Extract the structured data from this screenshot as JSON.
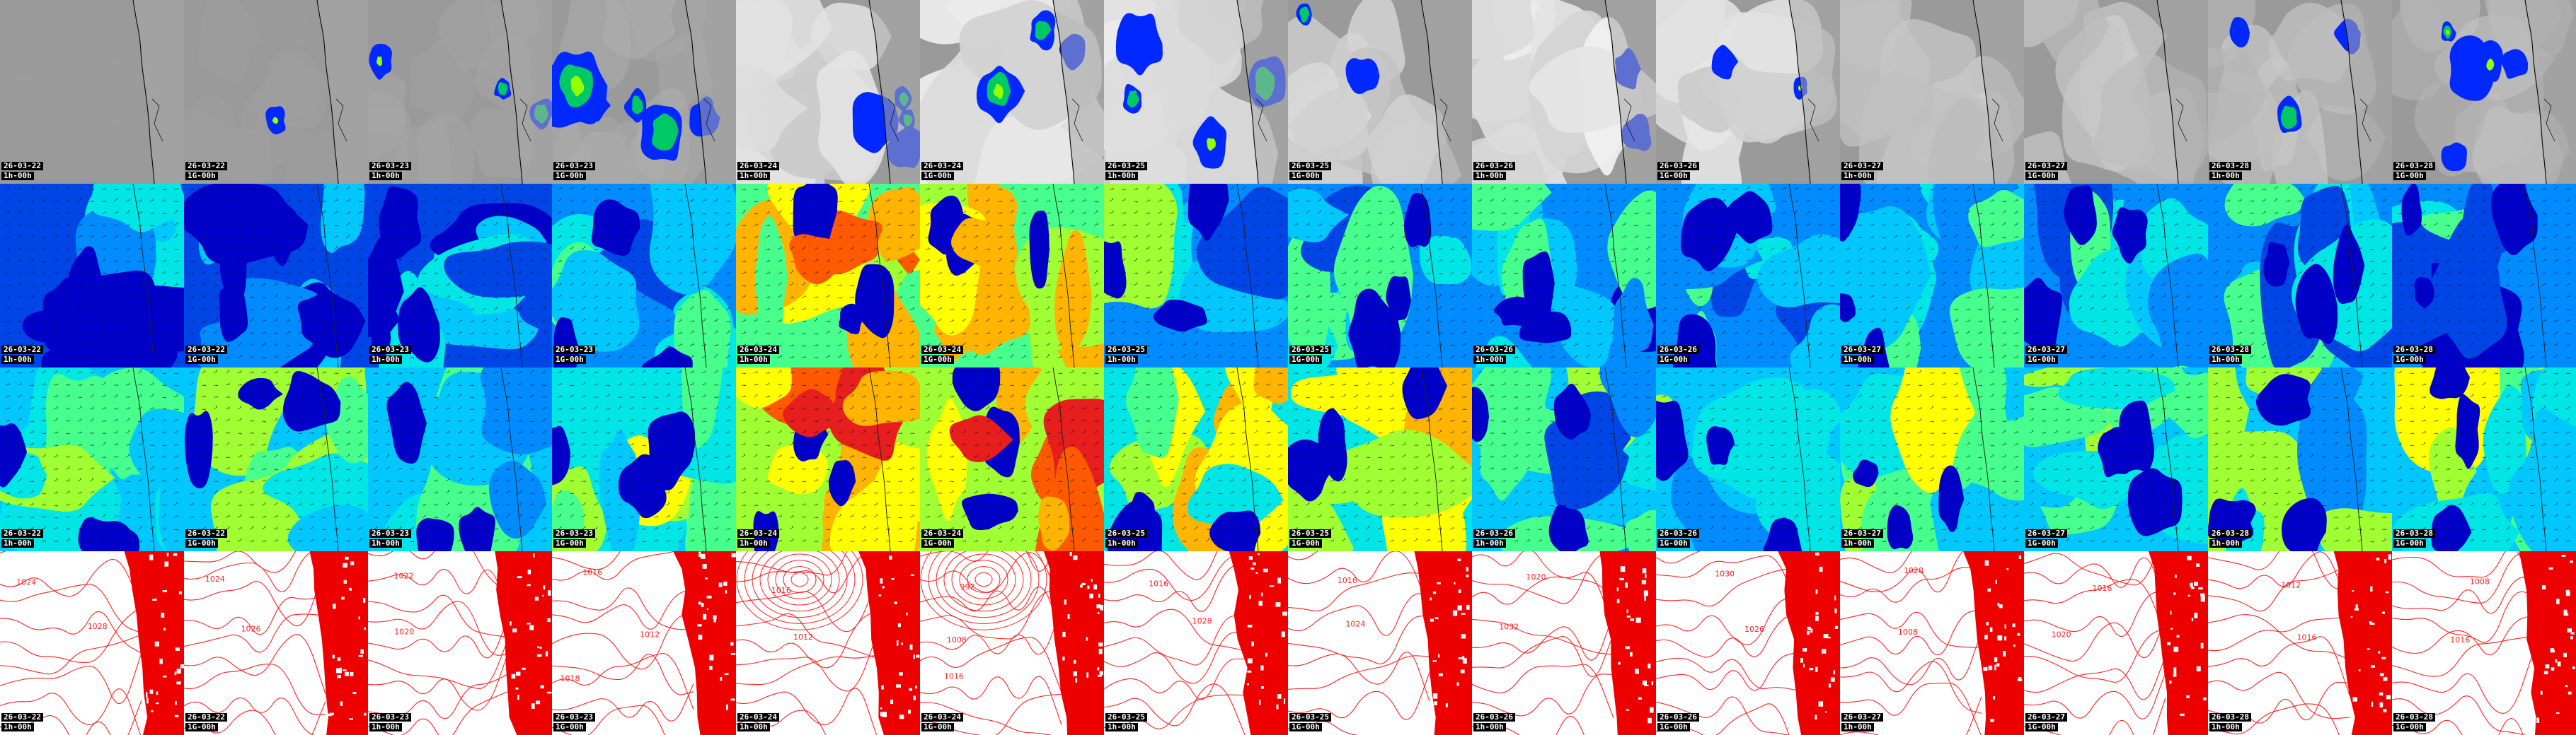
{
  "grid": {
    "columns": [
      {
        "date": "26-03-22",
        "hour": "1h-00h"
      },
      {
        "date": "26-03-22",
        "hour": "1G-00h"
      },
      {
        "date": "26-03-23",
        "hour": "1h-00h"
      },
      {
        "date": "26-03-23",
        "hour": "1G-00h"
      },
      {
        "date": "26-03-24",
        "hour": "1h-00h"
      },
      {
        "date": "26-03-24",
        "hour": "1G-00h"
      },
      {
        "date": "26-03-25",
        "hour": "1h-00h"
      },
      {
        "date": "26-03-25",
        "hour": "1G-00h"
      },
      {
        "date": "26-03-26",
        "hour": "1h-00h"
      },
      {
        "date": "26-03-26",
        "hour": "1G-00h"
      },
      {
        "date": "26-03-27",
        "hour": "1h-00h"
      },
      {
        "date": "26-03-27",
        "hour": "1G-00h"
      },
      {
        "date": "26-03-28",
        "hour": "1h-00h"
      },
      {
        "date": "26-03-28",
        "hour": "1G-00h"
      }
    ],
    "rows": [
      {
        "type": "clouds-precipitation"
      },
      {
        "type": "wind-level-1"
      },
      {
        "type": "wind-level-2"
      },
      {
        "type": "pressure-isobars"
      }
    ]
  },
  "pressure_labels": [
    [
      "1024",
      "1028"
    ],
    [
      "1024",
      "1026"
    ],
    [
      "1022",
      "1020"
    ],
    [
      "1016",
      "1012",
      "1018"
    ],
    [
      "1016",
      "1012"
    ],
    [
      "992",
      "1008",
      "1016"
    ],
    [
      "1016",
      "1028"
    ],
    [
      "1016",
      "1024"
    ],
    [
      "1020",
      "1032"
    ],
    [
      "1030",
      "1026"
    ],
    [
      "1028",
      "1008"
    ],
    [
      "1016",
      "1020"
    ],
    [
      "1012",
      "1016"
    ],
    [
      "1008",
      "1016"
    ]
  ],
  "colors": {
    "land": "#aaaaaa",
    "coast": "#111111",
    "wind_scale": [
      "#0000c8",
      "#0046e6",
      "#008cff",
      "#00c8ff",
      "#00e6e6",
      "#46ff8c",
      "#a0ff32",
      "#ffff00",
      "#ffb400",
      "#ff5a00",
      "#e61e1e"
    ],
    "precip_scale": [
      "#0028ff",
      "#0064ff",
      "#00c864",
      "#96ff00"
    ],
    "isobar": "#ff2222",
    "land_red": "#ee0000"
  },
  "intensity": {
    "wind_top": [
      0.22,
      0.24,
      0.25,
      0.33,
      0.72,
      0.66,
      0.36,
      0.38,
      0.3,
      0.33,
      0.35,
      0.33,
      0.28,
      0.29
    ],
    "wind_bottom": [
      0.45,
      0.46,
      0.45,
      0.52,
      0.86,
      0.8,
      0.6,
      0.58,
      0.42,
      0.45,
      0.48,
      0.46,
      0.45,
      0.5
    ],
    "cloud": [
      0.08,
      0.12,
      0.18,
      0.25,
      0.78,
      0.92,
      0.82,
      0.72,
      0.88,
      0.8,
      0.6,
      0.55,
      0.5,
      0.42
    ],
    "precip": [
      0.05,
      0.08,
      0.4,
      0.75,
      0.55,
      0.35,
      0.45,
      0.2,
      0.25,
      0.2,
      0.05,
      0.05,
      0.45,
      0.6
    ]
  }
}
